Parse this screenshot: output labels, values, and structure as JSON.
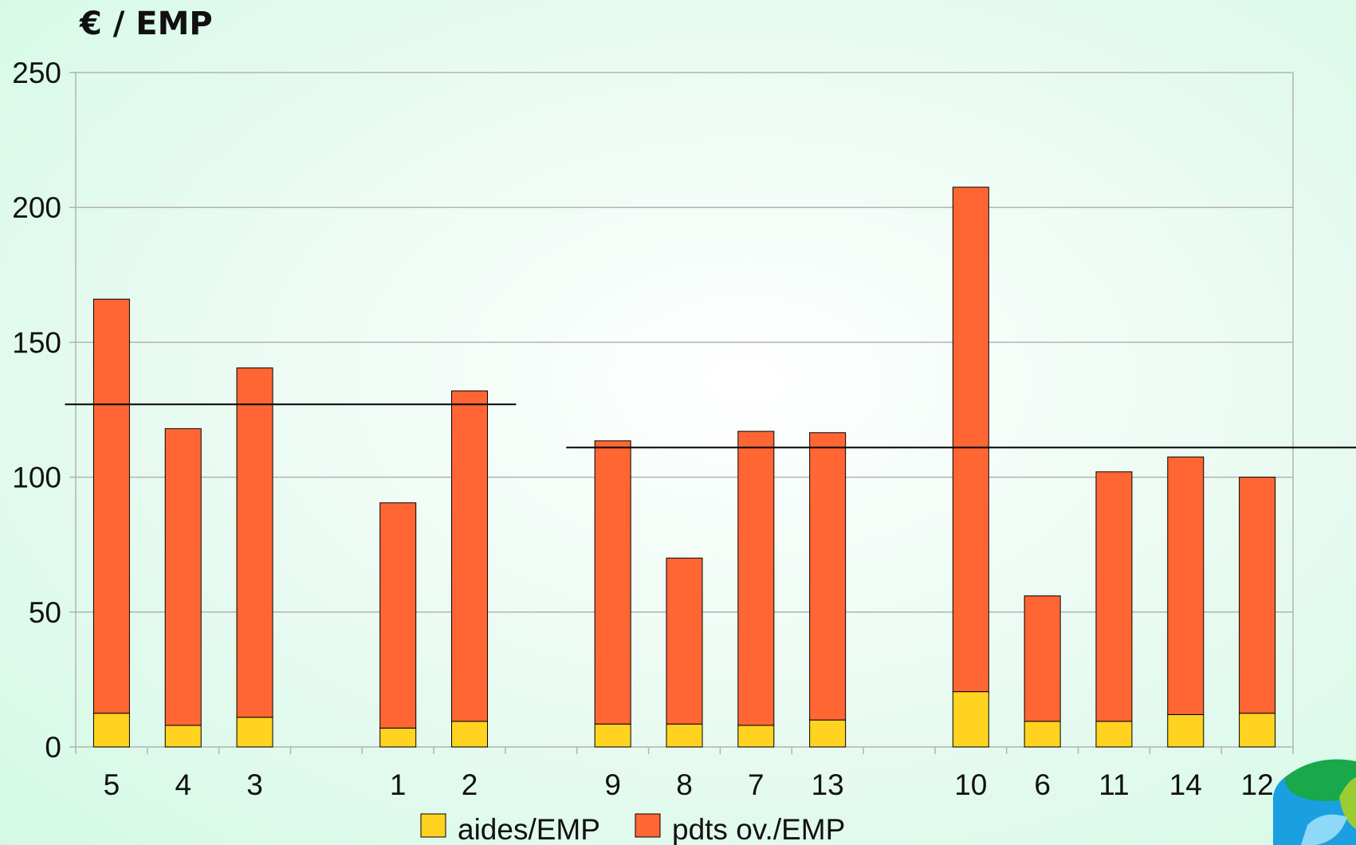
{
  "chart_data": {
    "type": "bar",
    "stacked": true,
    "ylabel": "€ / EMP",
    "ylim": [
      0,
      250
    ],
    "yticks": [
      0,
      50,
      100,
      150,
      200,
      250
    ],
    "grid": true,
    "categories": [
      "5",
      "4",
      "3",
      "",
      "1",
      "2",
      "",
      "9",
      "8",
      "7",
      "13",
      "",
      "10",
      "6",
      "11",
      "14",
      "12"
    ],
    "series": [
      {
        "name": "aides/EMP",
        "color": "#ffd320",
        "values": [
          12.5,
          8,
          11,
          null,
          7,
          9.5,
          null,
          8.5,
          8.5,
          8,
          10,
          null,
          20.5,
          9.5,
          9.5,
          12,
          12.5
        ]
      },
      {
        "name": "pdts ov./EMP",
        "color": "#ff6633",
        "values": [
          153.5,
          110,
          129.5,
          null,
          83.5,
          122.5,
          null,
          105,
          61.5,
          109,
          106.5,
          null,
          187,
          46.5,
          92.5,
          95.5,
          87.5
        ]
      }
    ],
    "reference_lines": [
      {
        "value": 127,
        "from_category": 0,
        "to_category": 5
      },
      {
        "value": 111,
        "from_category": 7,
        "to_category": 16
      }
    ],
    "legend_placement": "bottom-center"
  },
  "decor": {
    "logo": "corner-logo"
  }
}
